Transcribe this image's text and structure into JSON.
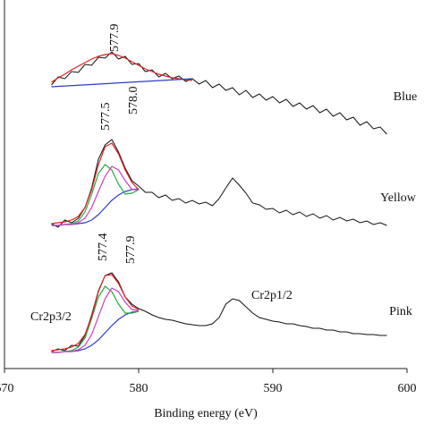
{
  "chart_data": {
    "type": "line",
    "xlabel": "Binding energy (eV)",
    "xlim": [
      570,
      600
    ],
    "xticks": [
      570,
      580,
      590,
      600
    ],
    "ylim": [
      0,
      412
    ],
    "x": [
      573.5,
      574,
      574.5,
      575,
      575.5,
      576,
      576.5,
      577,
      577.5,
      578,
      578.5,
      579,
      579.5,
      580,
      580.5,
      581,
      581.5,
      582,
      582.5,
      583,
      583.5,
      584,
      584.5,
      585,
      585.5,
      586,
      586.5,
      587,
      587.5,
      588,
      588.5,
      589,
      589.5,
      590,
      590.5,
      591,
      591.5,
      592,
      592.5,
      593,
      593.5,
      594,
      594.5,
      595,
      595.5,
      596,
      596.5,
      597,
      597.5,
      598,
      598.5
    ],
    "series": [
      {
        "name": "Blue",
        "color": "#111111",
        "values": [
          317,
          326,
          324,
          332,
          331,
          340,
          339,
          348,
          347,
          354,
          346,
          349,
          340,
          341,
          332,
          334,
          326,
          330,
          324,
          327,
          321,
          324,
          318,
          322,
          314,
          318,
          311,
          314,
          306,
          311,
          303,
          307,
          300,
          304,
          297,
          301,
          293,
          297,
          290,
          294,
          286,
          290,
          282,
          286,
          278,
          281,
          272,
          276,
          268,
          270,
          262
        ],
        "fits": [
          {
            "color": "#e02020",
            "x": [
              573.5,
              574,
              574.5,
              575,
              575.5,
              576,
              576.5,
              577,
              577.5,
              578,
              578.5,
              579,
              579.5,
              580,
              580.5,
              581,
              581.5,
              582,
              582.5,
              583,
              583.5,
              584
            ],
            "values": [
              320,
              325,
              329,
              334,
              338,
              342,
              346,
              349,
              351,
              352,
              350,
              347,
              343,
              339,
              335,
              332,
              329,
              327,
              325,
              324,
              323,
              322
            ]
          },
          {
            "color": "#2a3fbf",
            "x": [
              573.5,
              584
            ],
            "values": [
              315,
              324
            ]
          }
        ]
      },
      {
        "name": "Yellow",
        "color": "#111111",
        "values": [
          162,
          158,
          166,
          163,
          168,
          180,
          202,
          234,
          250,
          256,
          242,
          224,
          210,
          204,
          197,
          197,
          191,
          194,
          188,
          190,
          185,
          188,
          184,
          186,
          182,
          190,
          202,
          213,
          205,
          196,
          185,
          183,
          178,
          179,
          174,
          177,
          172,
          175,
          170,
          173,
          168,
          171,
          166,
          169,
          165,
          167,
          163,
          165,
          161,
          163,
          160
        ],
        "fits": [
          {
            "color": "#2a3fbf",
            "x": [
              573.5,
              574,
              574.5,
              575,
              575.5,
              576,
              576.5,
              577,
              577.5,
              578,
              578.5,
              579,
              579.5,
              580
            ],
            "values": [
              160,
              160,
              161,
              161,
              162,
              163,
              166,
              172,
              180,
              188,
              194,
              198,
              200,
              201
            ]
          },
          {
            "color": "#22aa44",
            "x": [
              573.5,
              574,
              574.5,
              575,
              575.5,
              576,
              576.5,
              577,
              577.5,
              578,
              578.5,
              579,
              579.5,
              580
            ],
            "values": [
              160,
              160,
              161,
              162,
              165,
              175,
              195,
              218,
              228,
              222,
              206,
              195,
              196,
              200
            ]
          },
          {
            "color": "#d040c0",
            "x": [
              573.5,
              574,
              574.5,
              575,
              575.5,
              576,
              576.5,
              577,
              577.5,
              578,
              578.5,
              579,
              579.5,
              580
            ],
            "values": [
              160,
              160,
              161,
              161,
              163,
              168,
              180,
              198,
              215,
              226,
              222,
              210,
              200,
              200
            ]
          },
          {
            "color": "#e02020",
            "x": [
              573.5,
              574,
              574.5,
              575,
              575.5,
              576,
              576.5,
              577,
              577.5,
              578,
              578.5,
              579,
              579.5,
              580
            ],
            "values": [
              162,
              163,
              164,
              166,
              170,
              180,
              200,
              228,
              248,
              252,
              240,
              222,
              208,
              200
            ]
          }
        ]
      },
      {
        "name": "Pink",
        "color": "#111111",
        "values": [
          19,
          22,
          20,
          26,
          25,
          37,
          60,
          87,
          104,
          107,
          97,
          80,
          72,
          67,
          64,
          60,
          57,
          55,
          54,
          52,
          50,
          49,
          48,
          48,
          50,
          57,
          72,
          78,
          76,
          69,
          62,
          57,
          55,
          53,
          52,
          50,
          50,
          48,
          47,
          45,
          45,
          43,
          43,
          41,
          41,
          39,
          39,
          38,
          38,
          37,
          37
        ],
        "fits": [
          {
            "color": "#2a3fbf",
            "x": [
              573.5,
              574,
              574.5,
              575,
              575.5,
              576,
              576.5,
              577,
              577.5,
              578,
              578.5,
              579,
              579.5,
              580
            ],
            "values": [
              18,
              18,
              19,
              19,
              20,
              22,
              26,
              32,
              40,
              48,
              55,
              60,
              63,
              64
            ]
          },
          {
            "color": "#22aa44",
            "x": [
              573.5,
              574,
              574.5,
              575,
              575.5,
              576,
              576.5,
              577,
              577.5,
              578,
              578.5,
              579,
              579.5,
              580
            ],
            "values": [
              18,
              18,
              19,
              20,
              24,
              34,
              56,
              80,
              92,
              86,
              72,
              62,
              62,
              64
            ]
          },
          {
            "color": "#d040c0",
            "x": [
              573.5,
              574,
              574.5,
              575,
              575.5,
              576,
              576.5,
              577,
              577.5,
              578,
              578.5,
              579,
              579.5,
              580
            ],
            "values": [
              18,
              18,
              19,
              19,
              21,
              26,
              38,
              58,
              78,
              90,
              86,
              74,
              66,
              65
            ]
          },
          {
            "color": "#e02020",
            "x": [
              573.5,
              574,
              574.5,
              575,
              575.5,
              576,
              576.5,
              577,
              577.5,
              578,
              578.5,
              579,
              579.5,
              580
            ],
            "values": [
              20,
              21,
              22,
              24,
              28,
              38,
              58,
              86,
              104,
              105,
              95,
              80,
              70,
              66
            ]
          }
        ]
      }
    ],
    "annotations": [
      "577.9",
      "577.5",
      "578.0",
      "577.4",
      "577.9",
      "Cr2p3/2",
      "Cr2p1/2"
    ]
  }
}
